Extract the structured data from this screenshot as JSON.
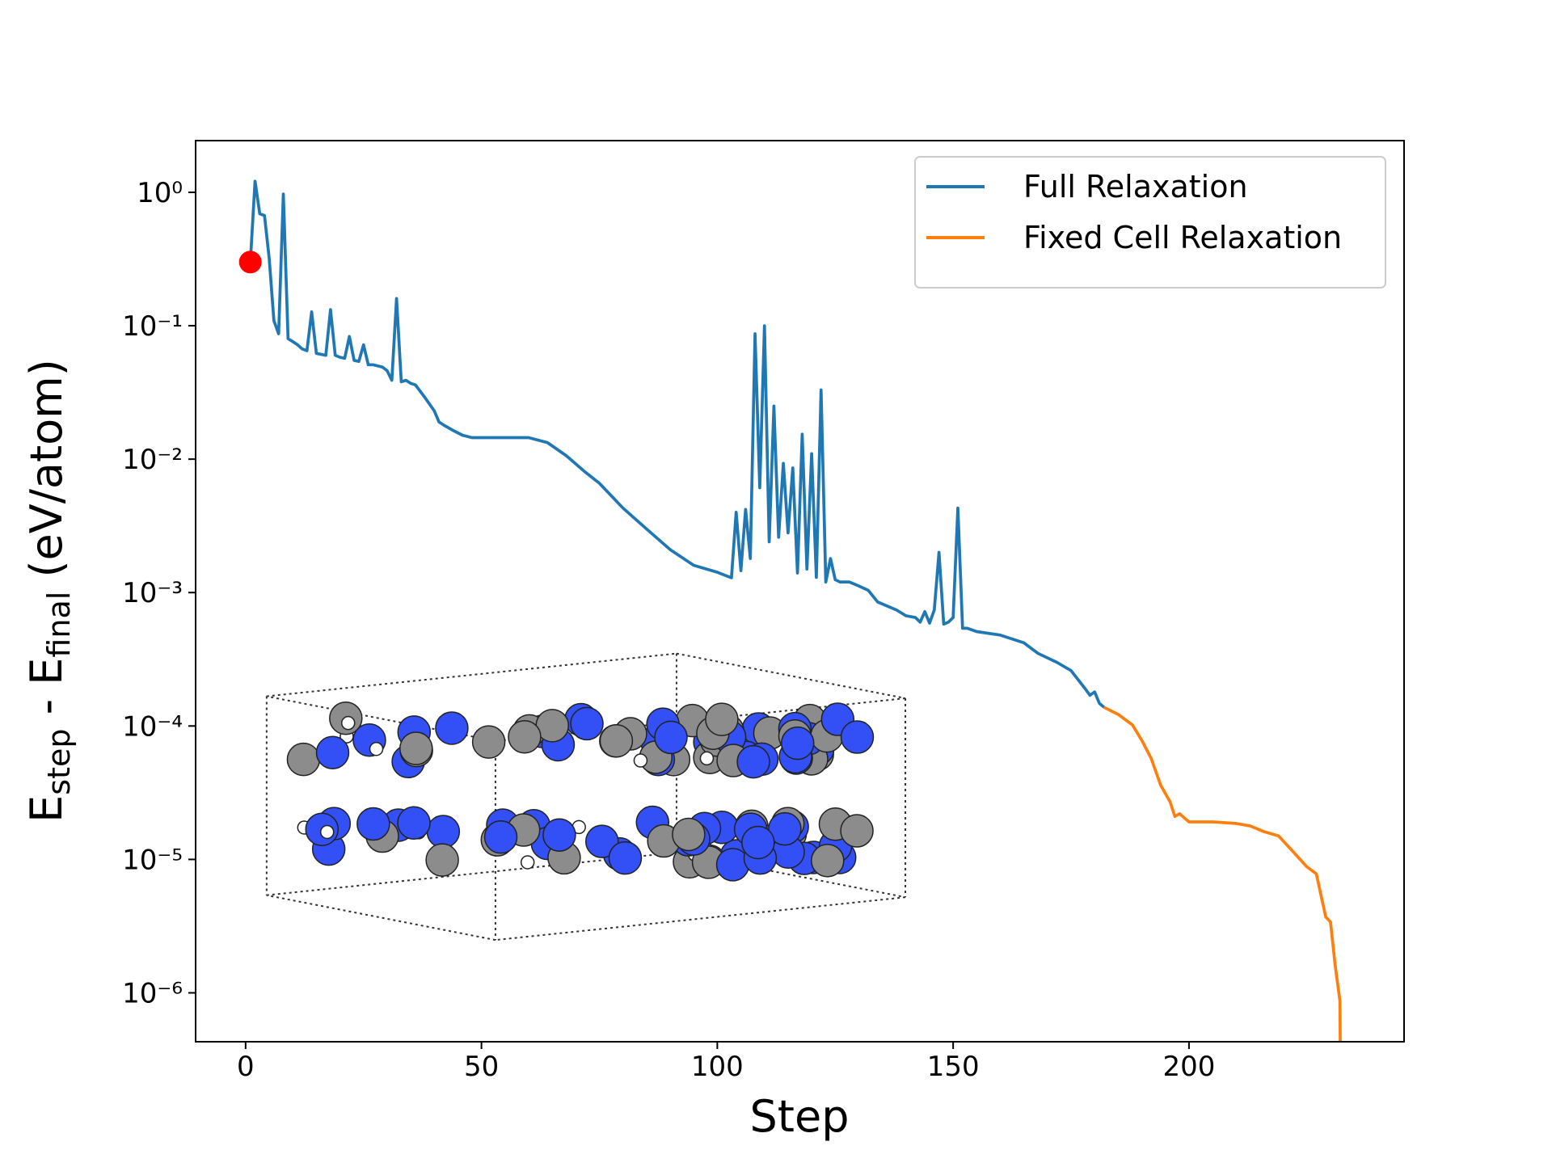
{
  "chart_data": {
    "type": "line",
    "x_label": "Step",
    "y_label": [
      "E",
      "step",
      " - E",
      "final",
      " (eV/atom)"
    ],
    "log_scale_y": true,
    "xlim": [
      -10.6,
      245.6
    ],
    "ylim": [
      4.3e-07,
      2.44
    ],
    "xticks": [
      0,
      50,
      100,
      150,
      200
    ],
    "yticks": [
      {
        "value": 1,
        "label": "10⁰"
      },
      {
        "value": 0.1,
        "label": "10⁻¹"
      },
      {
        "value": 0.01,
        "label": "10⁻²"
      },
      {
        "value": 0.001,
        "label": "10⁻³"
      },
      {
        "value": 0.0001,
        "label": "10⁻⁴"
      },
      {
        "value": 1e-05,
        "label": "10⁻⁵"
      },
      {
        "value": 1e-06,
        "label": "10⁻⁶"
      }
    ],
    "legend": "upper right",
    "series": [
      {
        "name": "Full Relaxation",
        "color": "#1f77b4",
        "x": [
          1,
          2,
          3,
          4,
          5,
          6,
          7,
          8,
          9,
          10,
          11,
          12,
          13,
          14,
          15,
          16,
          17,
          18,
          19,
          20,
          21,
          22,
          23,
          24,
          25,
          26,
          27,
          28,
          29,
          30,
          31,
          32,
          33,
          34,
          35,
          36,
          38,
          40,
          41,
          42,
          44,
          46,
          48,
          50,
          60,
          64,
          68,
          72,
          75,
          80,
          85,
          90,
          95,
          100,
          103,
          104,
          105,
          106,
          107,
          108,
          109,
          110,
          111,
          112,
          113,
          114,
          115,
          116,
          117,
          118,
          119,
          120,
          121,
          122,
          123,
          124,
          125,
          126,
          128,
          130,
          132,
          134,
          138,
          140,
          142,
          143,
          144,
          145,
          146,
          147,
          148,
          149,
          150,
          151,
          152,
          153,
          155,
          160,
          165,
          168,
          172,
          175,
          178,
          179,
          180,
          181,
          182
        ],
        "values": [
          0.3,
          1.21,
          0.69,
          0.67,
          0.32,
          0.109,
          0.087,
          0.97,
          0.08,
          0.076,
          0.072,
          0.067,
          0.065,
          0.127,
          0.062,
          0.061,
          0.06,
          0.132,
          0.06,
          0.058,
          0.057,
          0.083,
          0.055,
          0.054,
          0.072,
          0.051,
          0.051,
          0.05,
          0.049,
          0.046,
          0.039,
          0.16,
          0.038,
          0.039,
          0.037,
          0.036,
          0.029,
          0.023,
          0.019,
          0.018,
          0.0164,
          0.0151,
          0.0145,
          0.0145,
          0.0145,
          0.0133,
          0.0106,
          0.008,
          0.0066,
          0.0043,
          0.003,
          0.0021,
          0.0016,
          0.00142,
          0.00129,
          0.004,
          0.00146,
          0.0042,
          0.0018,
          0.087,
          0.0061,
          0.1,
          0.0024,
          0.025,
          0.0026,
          0.0093,
          0.0028,
          0.0086,
          0.0014,
          0.0154,
          0.0015,
          0.011,
          0.0013,
          0.033,
          0.0012,
          0.0018,
          0.00125,
          0.0012,
          0.0012,
          0.00112,
          0.00104,
          0.00085,
          0.00074,
          0.00067,
          0.00065,
          0.0006,
          0.00072,
          0.00059,
          0.00074,
          0.002,
          0.00058,
          0.0006,
          0.00065,
          0.0043,
          0.00054,
          0.00054,
          0.00051,
          0.00048,
          0.00042,
          0.00035,
          0.0003,
          0.00026,
          0.00019,
          0.00017,
          0.00018,
          0.000148,
          0.000138
        ]
      },
      {
        "name": "Fixed Cell Relaxation",
        "color": "#ff7f0e",
        "x": [
          182,
          185,
          188,
          190,
          192,
          194,
          196,
          197,
          198,
          200,
          205,
          210,
          213,
          216,
          219,
          222,
          225,
          227,
          229,
          230,
          231,
          232,
          232.1
        ],
        "values": [
          0.000138,
          0.000122,
          0.000102,
          7.8e-05,
          5.7e-05,
          3.6e-05,
          2.7e-05,
          2.1e-05,
          2.2e-05,
          1.91e-05,
          1.91e-05,
          1.86e-05,
          1.78e-05,
          1.61e-05,
          1.5e-05,
          1.15e-05,
          8.8e-06,
          7.8e-06,
          3.7e-06,
          3.4e-06,
          1.6e-06,
          8.7e-07,
          3e-07
        ]
      }
    ],
    "highlight": {
      "x": 1,
      "value": 0.3,
      "color": "#ff0000"
    }
  }
}
